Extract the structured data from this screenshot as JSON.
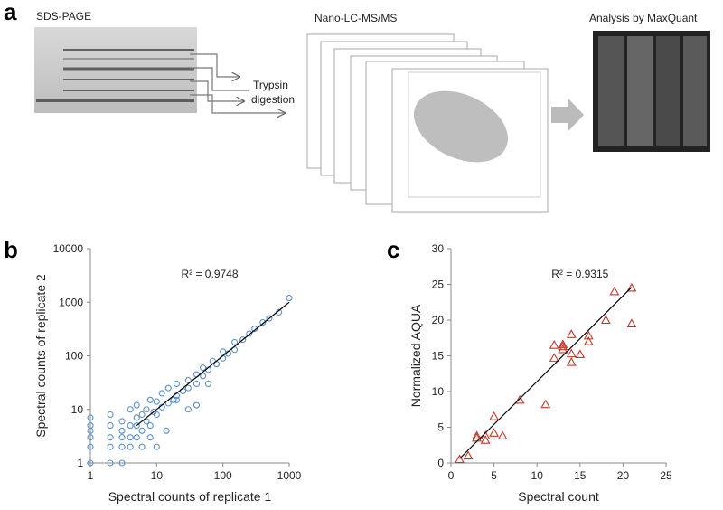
{
  "panel_labels": [
    "a",
    "b",
    "c"
  ],
  "workflow": {
    "steps": [
      "SDS-PAGE",
      "Nano-LC-MS/MS",
      "Analysis by MaxQuant"
    ],
    "digestion": [
      "Trypsin",
      "digestion"
    ]
  },
  "chart_data": [
    {
      "type": "scatter",
      "log_scale": true,
      "marker": "circle",
      "color": "#5b8fc7",
      "x_label": "Spectral counts of replicate 1",
      "y_label": "Spectral counts of replicate 2",
      "annotation": "R² = 0.9748",
      "xlim": [
        1,
        1000
      ],
      "ylim": [
        1,
        10000
      ],
      "xticks": [
        1,
        10,
        100,
        1000
      ],
      "yticks": [
        1,
        10,
        100,
        1000,
        10000
      ],
      "x": [
        1,
        1,
        1,
        1,
        1,
        1,
        2,
        2,
        2,
        2,
        2,
        3,
        3,
        3,
        3,
        3,
        4,
        4,
        4,
        4,
        5,
        5,
        5,
        5,
        6,
        6,
        7,
        7,
        8,
        8,
        9,
        10,
        10,
        12,
        12,
        15,
        15,
        18,
        20,
        20,
        25,
        30,
        30,
        40,
        40,
        50,
        50,
        60,
        70,
        80,
        100,
        100,
        120,
        150,
        150,
        200,
        250,
        300,
        400,
        500,
        700,
        1000,
        6,
        8,
        10,
        14,
        30,
        40,
        20,
        60
      ],
      "y": [
        1,
        2,
        3,
        4,
        5,
        7,
        1,
        2,
        3,
        5,
        8,
        1,
        2,
        3,
        4,
        6,
        2,
        3,
        5,
        10,
        3,
        5,
        7,
        12,
        4,
        8,
        6,
        10,
        5,
        15,
        9,
        8,
        14,
        11,
        20,
        13,
        25,
        15,
        30,
        18,
        22,
        35,
        25,
        45,
        30,
        60,
        42,
        55,
        80,
        70,
        120,
        90,
        110,
        180,
        130,
        200,
        260,
        320,
        420,
        500,
        650,
        1200,
        2,
        3,
        2,
        4,
        10,
        12,
        15,
        30
      ],
      "trendline": {
        "x": [
          5,
          1000
        ],
        "y": [
          5,
          1000
        ],
        "color": "#000000"
      }
    },
    {
      "type": "scatter",
      "log_scale": false,
      "marker": "triangle",
      "color": "#c0392b",
      "x_label": "Spectral count",
      "y_label": "Normalized AQUA",
      "annotation": "R² = 0.9315",
      "xlim": [
        0,
        25
      ],
      "ylim": [
        0,
        30
      ],
      "xticks": [
        0,
        5,
        10,
        15,
        20,
        25
      ],
      "yticks": [
        0,
        5,
        10,
        15,
        20,
        25,
        30
      ],
      "x": [
        1,
        2,
        3,
        3,
        4,
        4,
        5,
        5,
        6,
        8,
        11,
        12,
        12,
        13,
        13,
        13,
        14,
        14,
        14,
        15,
        16,
        16,
        18,
        19,
        21,
        21
      ],
      "y": [
        0.5,
        1,
        3.8,
        3.5,
        3.8,
        3.2,
        4.2,
        6.5,
        3.8,
        8.8,
        8.2,
        14.7,
        16.5,
        16.3,
        16.6,
        15.9,
        18,
        14.1,
        15.3,
        15.2,
        17,
        17.8,
        20,
        24,
        24.5,
        19.5
      ],
      "trendline": {
        "x": [
          1,
          21
        ],
        "y": [
          0.6,
          24.6
        ],
        "color": "#000000"
      }
    }
  ]
}
